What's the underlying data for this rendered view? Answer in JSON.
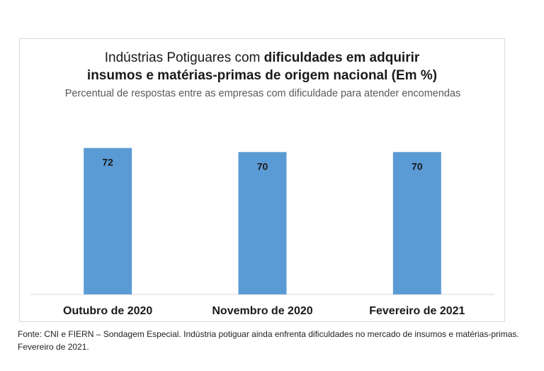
{
  "chart_data": {
    "type": "bar",
    "title_part1": "Indústrias Potiguares com ",
    "title_bold1": "dificuldades em adquirir",
    "title_bold2": "insumos e matérias-primas de origem nacional (Em %)",
    "subtitle": "Percentual de respostas entre as empresas com dificuldade para atender encomendas",
    "categories": [
      "Outubro de 2020",
      "Novembro de 2020",
      "Fevereiro de 2021"
    ],
    "values": [
      72,
      70,
      70
    ],
    "data_labels": [
      "72",
      "70",
      "70"
    ],
    "ylim": [
      0,
      75
    ],
    "grid": false,
    "legend": "none",
    "bar_color": "#5b9bd5"
  },
  "source": "Fonte: CNI e FIERN – Sondagem Especial. Indústria potiguar ainda enfrenta dificuldades no mercado de insumos e matérias-primas. Fevereiro de 2021."
}
